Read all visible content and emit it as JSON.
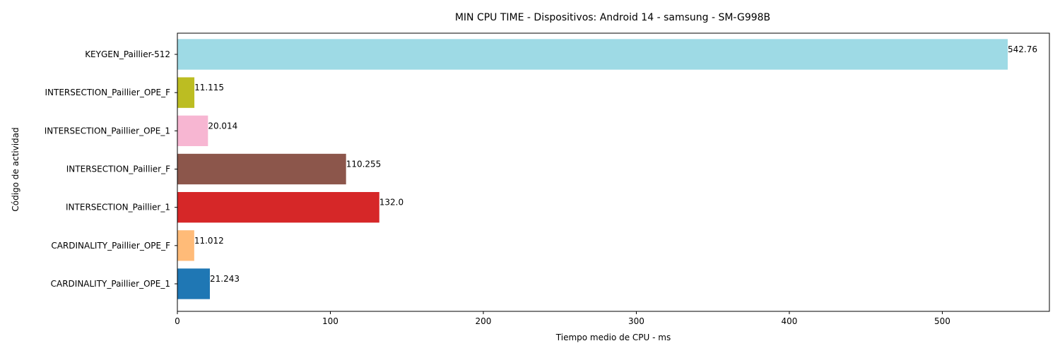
{
  "chart_data": {
    "type": "bar",
    "orientation": "horizontal",
    "title": "MIN CPU TIME - Dispositivos: Android 14 - samsung - SM-G998B",
    "xlabel": "Tiempo medio de CPU - ms",
    "ylabel": "Código de actividad",
    "xlim": [
      0,
      570
    ],
    "xticks": [
      0,
      100,
      200,
      300,
      400,
      500
    ],
    "grid": false,
    "categories": [
      "CARDINALITY_Paillier_OPE_1",
      "CARDINALITY_Paillier_OPE_F",
      "INTERSECTION_Paillier_1",
      "INTERSECTION_Paillier_F",
      "INTERSECTION_Paillier_OPE_1",
      "INTERSECTION_Paillier_OPE_F",
      "KEYGEN_Paillier-512"
    ],
    "values": [
      21.243,
      11.012,
      132.0,
      110.255,
      20.014,
      11.115,
      542.76
    ],
    "value_labels": [
      "21.243",
      "11.012",
      "132.0",
      "110.255",
      "20.014",
      "11.115",
      "542.76"
    ],
    "colors": [
      "#1f77b4",
      "#ffbb78",
      "#d62728",
      "#8c564b",
      "#f7b6d2",
      "#bcbd22",
      "#9edae5"
    ]
  }
}
